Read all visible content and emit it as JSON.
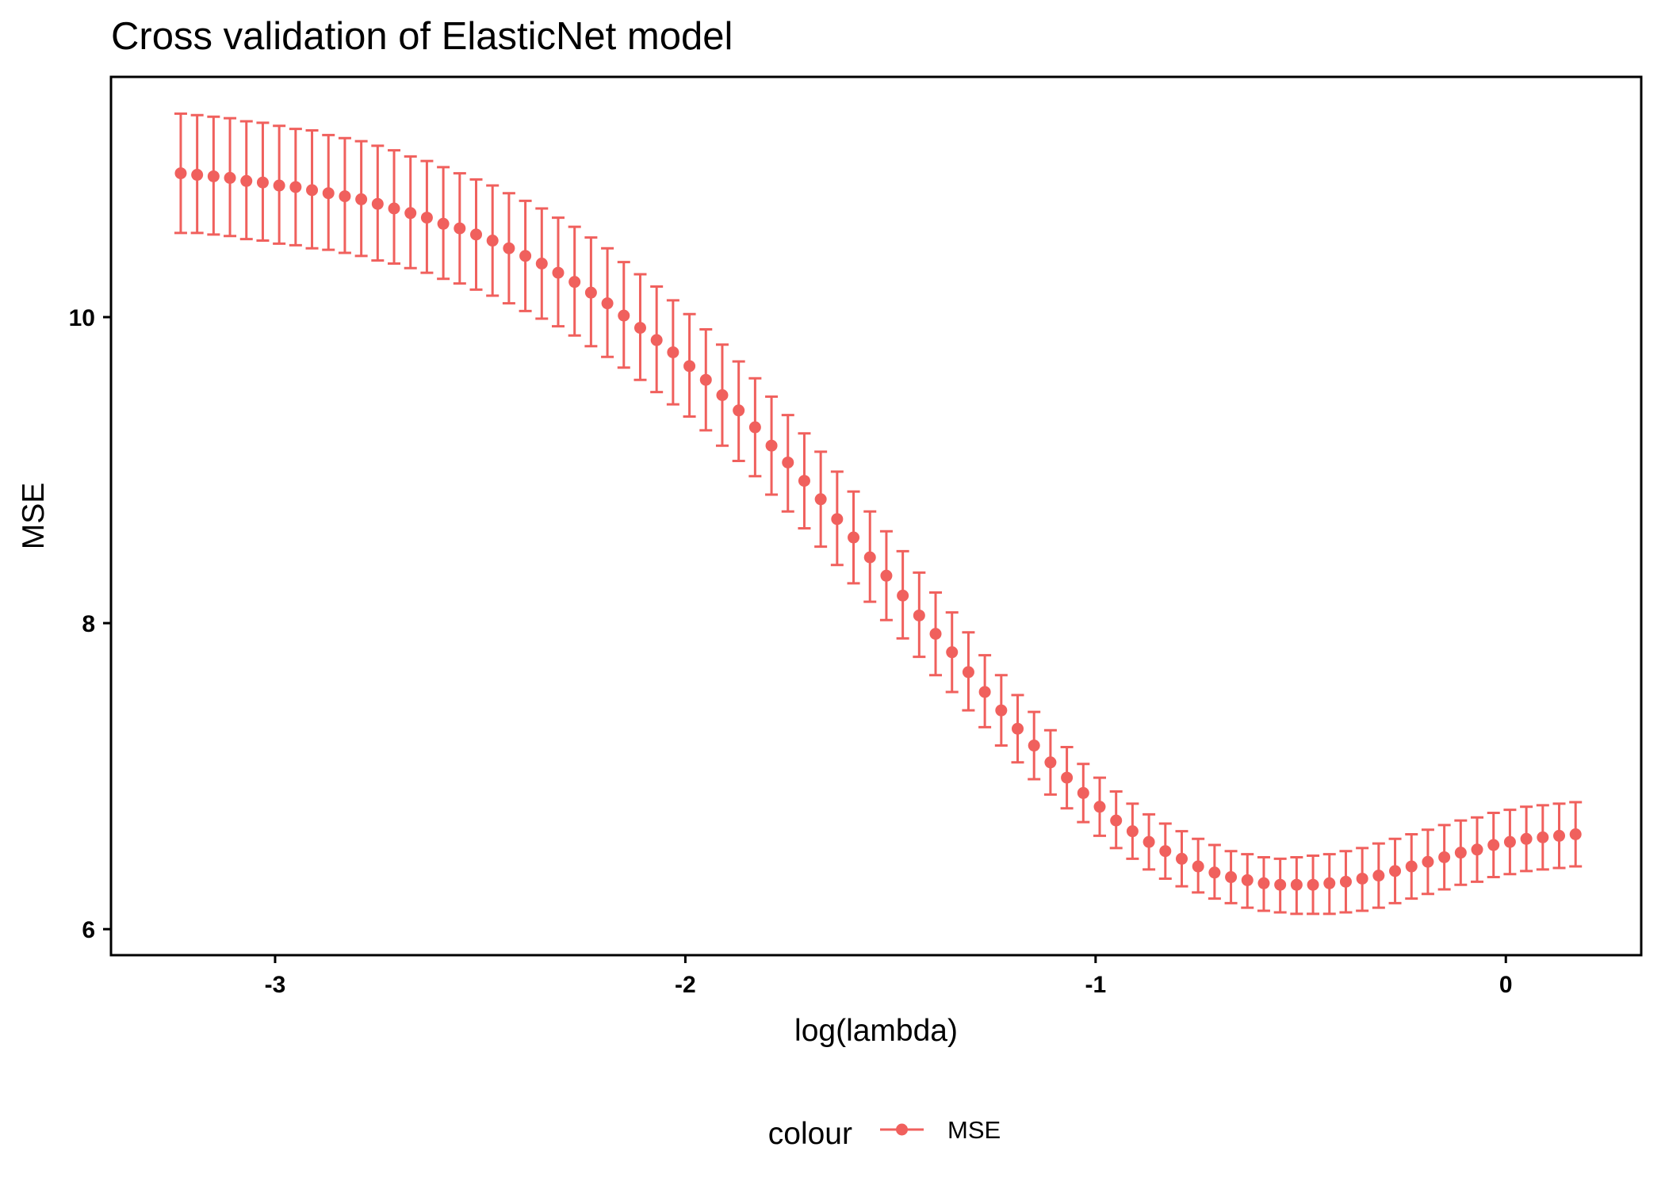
{
  "chart_data": {
    "type": "scatter",
    "title": "Cross validation of ElasticNet model",
    "xlabel": "log(lambda)",
    "ylabel": "MSE",
    "xlim": [
      -3.4,
      0.33
    ],
    "ylim": [
      5.83,
      11.57
    ],
    "x_ticks": [
      -3,
      -2,
      -1,
      0
    ],
    "x_tick_labels": [
      "-3",
      "-2",
      "-1",
      "0"
    ],
    "y_ticks": [
      6,
      8,
      10
    ],
    "y_tick_labels": [
      "6",
      "8",
      "10"
    ],
    "grid": false,
    "legend": {
      "title": "colour",
      "position": "bottom",
      "entries": [
        "MSE"
      ]
    },
    "colors": {
      "series": "#F0605D",
      "frame": "#000000",
      "text": "#000000"
    },
    "series": [
      {
        "name": "MSE",
        "error_bars": true,
        "x": [
          -3.23,
          -3.19,
          -3.15,
          -3.11,
          -3.07,
          -3.03,
          -2.99,
          -2.95,
          -2.91,
          -2.87,
          -2.83,
          -2.79,
          -2.75,
          -2.71,
          -2.67,
          -2.63,
          -2.59,
          -2.55,
          -2.51,
          -2.47,
          -2.43,
          -2.39,
          -2.35,
          -2.31,
          -2.27,
          -2.23,
          -2.19,
          -2.15,
          -2.11,
          -2.07,
          -2.03,
          -1.99,
          -1.95,
          -1.91,
          -1.87,
          -1.83,
          -1.79,
          -1.75,
          -1.71,
          -1.67,
          -1.63,
          -1.59,
          -1.55,
          -1.51,
          -1.47,
          -1.43,
          -1.39,
          -1.35,
          -1.31,
          -1.27,
          -1.23,
          -1.19,
          -1.15,
          -1.11,
          -1.07,
          -1.03,
          -0.99,
          -0.95,
          -0.91,
          -0.87,
          -0.83,
          -0.79,
          -0.75,
          -0.71,
          -0.67,
          -0.63,
          -0.59,
          -0.55,
          -0.51,
          -0.47,
          -0.43,
          -0.39,
          -0.35,
          -0.31,
          -0.27,
          -0.23,
          -0.19,
          -0.15,
          -0.11,
          -0.07,
          -0.03,
          0.01,
          0.05,
          0.09,
          0.13,
          0.17
        ],
        "y": [
          10.94,
          10.93,
          10.92,
          10.91,
          10.89,
          10.88,
          10.86,
          10.85,
          10.83,
          10.81,
          10.79,
          10.77,
          10.74,
          10.71,
          10.68,
          10.65,
          10.61,
          10.58,
          10.54,
          10.5,
          10.45,
          10.4,
          10.35,
          10.29,
          10.23,
          10.16,
          10.09,
          10.01,
          9.93,
          9.85,
          9.77,
          9.68,
          9.59,
          9.49,
          9.39,
          9.28,
          9.16,
          9.05,
          8.93,
          8.81,
          8.68,
          8.56,
          8.43,
          8.31,
          8.18,
          8.05,
          7.93,
          7.81,
          7.68,
          7.55,
          7.43,
          7.31,
          7.2,
          7.09,
          6.99,
          6.89,
          6.8,
          6.71,
          6.64,
          6.57,
          6.51,
          6.46,
          6.41,
          6.37,
          6.34,
          6.32,
          6.3,
          6.29,
          6.29,
          6.29,
          6.3,
          6.31,
          6.33,
          6.35,
          6.38,
          6.41,
          6.44,
          6.47,
          6.5,
          6.52,
          6.55,
          6.57,
          6.59,
          6.6,
          6.61,
          6.62
        ],
        "lower": [
          10.55,
          10.55,
          10.54,
          10.53,
          10.51,
          10.5,
          10.48,
          10.47,
          10.45,
          10.44,
          10.42,
          10.4,
          10.37,
          10.35,
          10.32,
          10.29,
          10.25,
          10.22,
          10.18,
          10.14,
          10.09,
          10.04,
          9.99,
          9.94,
          9.88,
          9.81,
          9.74,
          9.67,
          9.59,
          9.51,
          9.43,
          9.35,
          9.26,
          9.16,
          9.06,
          8.96,
          8.84,
          8.73,
          8.62,
          8.5,
          8.38,
          8.26,
          8.14,
          8.02,
          7.9,
          7.78,
          7.66,
          7.55,
          7.43,
          7.32,
          7.2,
          7.09,
          6.98,
          6.88,
          6.79,
          6.7,
          6.61,
          6.53,
          6.46,
          6.39,
          6.33,
          6.28,
          6.24,
          6.2,
          6.17,
          6.14,
          6.12,
          6.11,
          6.1,
          6.1,
          6.1,
          6.11,
          6.12,
          6.14,
          6.17,
          6.2,
          6.23,
          6.26,
          6.29,
          6.31,
          6.34,
          6.36,
          6.38,
          6.39,
          6.4,
          6.41
        ],
        "upper": [
          11.33,
          11.32,
          11.31,
          11.3,
          11.28,
          11.27,
          11.25,
          11.23,
          11.22,
          11.19,
          11.17,
          11.15,
          11.12,
          11.09,
          11.05,
          11.02,
          10.98,
          10.94,
          10.9,
          10.86,
          10.81,
          10.76,
          10.71,
          10.65,
          10.59,
          10.52,
          10.45,
          10.36,
          10.28,
          10.2,
          10.11,
          10.02,
          9.92,
          9.82,
          9.71,
          9.6,
          9.48,
          9.36,
          9.24,
          9.12,
          8.99,
          8.86,
          8.73,
          8.6,
          8.47,
          8.33,
          8.2,
          8.07,
          7.94,
          7.79,
          7.66,
          7.53,
          7.42,
          7.3,
          7.19,
          7.08,
          6.99,
          6.9,
          6.82,
          6.75,
          6.69,
          6.64,
          6.59,
          6.55,
          6.51,
          6.49,
          6.47,
          6.46,
          6.47,
          6.48,
          6.49,
          6.51,
          6.53,
          6.56,
          6.59,
          6.62,
          6.65,
          6.68,
          6.71,
          6.73,
          6.76,
          6.78,
          6.8,
          6.81,
          6.82,
          6.83
        ]
      }
    ]
  }
}
